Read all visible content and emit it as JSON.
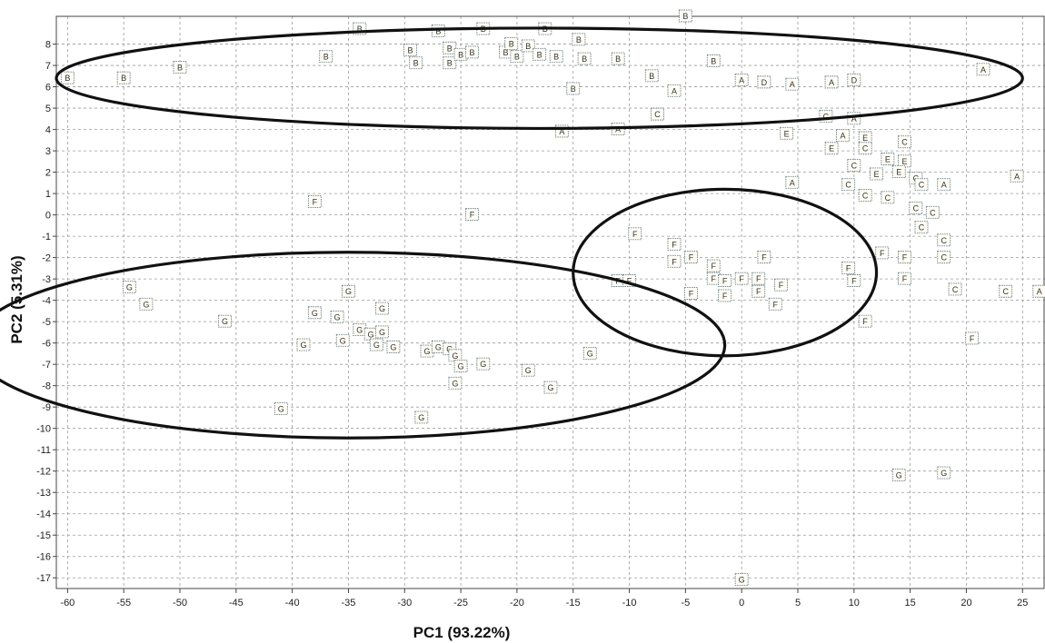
{
  "chart_data": {
    "type": "scatter",
    "title": "",
    "xlabel": "PC1 (93.22%)",
    "ylabel": "PC2 (5.31%)",
    "xlim": [
      -61,
      27
    ],
    "ylim": [
      -17.5,
      9.3
    ],
    "xticks": [
      -60,
      -55,
      -50,
      -45,
      -40,
      -35,
      -30,
      -25,
      -20,
      -15,
      -10,
      -5,
      0,
      5,
      10,
      15,
      20,
      25
    ],
    "yticks": [
      -17,
      -16,
      -15,
      -14,
      -13,
      -12,
      -11,
      -10,
      -9,
      -8,
      -7,
      -6,
      -5,
      -4,
      -3,
      -2,
      -1,
      0,
      1,
      2,
      3,
      4,
      5,
      6,
      7,
      8
    ],
    "grid": true,
    "legend": "none",
    "points": [
      {
        "label": "B",
        "x": -60,
        "y": 6.4
      },
      {
        "label": "B",
        "x": -55,
        "y": 6.4
      },
      {
        "label": "B",
        "x": -50,
        "y": 6.9
      },
      {
        "label": "B",
        "x": -37,
        "y": 7.4
      },
      {
        "label": "B",
        "x": -34,
        "y": 8.7
      },
      {
        "label": "B",
        "x": -29.5,
        "y": 7.7
      },
      {
        "label": "B",
        "x": -29,
        "y": 7.1
      },
      {
        "label": "B",
        "x": -27,
        "y": 8.6
      },
      {
        "label": "B",
        "x": -26,
        "y": 7.8
      },
      {
        "label": "B",
        "x": -26,
        "y": 7.1
      },
      {
        "label": "B",
        "x": -25,
        "y": 7.5
      },
      {
        "label": "B",
        "x": -24,
        "y": 7.6
      },
      {
        "label": "B",
        "x": -23,
        "y": 8.7
      },
      {
        "label": "B",
        "x": -21,
        "y": 7.6
      },
      {
        "label": "B",
        "x": -20.5,
        "y": 8.0
      },
      {
        "label": "B",
        "x": -20,
        "y": 7.4
      },
      {
        "label": "B",
        "x": -19,
        "y": 7.9
      },
      {
        "label": "B",
        "x": -18,
        "y": 7.5
      },
      {
        "label": "B",
        "x": -17.5,
        "y": 8.7
      },
      {
        "label": "B",
        "x": -16.5,
        "y": 7.4
      },
      {
        "label": "B",
        "x": -14.5,
        "y": 8.2
      },
      {
        "label": "B",
        "x": -14,
        "y": 7.3
      },
      {
        "label": "B",
        "x": -11,
        "y": 7.3
      },
      {
        "label": "B",
        "x": -15,
        "y": 5.9
      },
      {
        "label": "B",
        "x": -8,
        "y": 6.5
      },
      {
        "label": "B",
        "x": -5,
        "y": 9.3
      },
      {
        "label": "B",
        "x": -2.5,
        "y": 7.2
      },
      {
        "label": "A",
        "x": -6,
        "y": 5.8
      },
      {
        "label": "A",
        "x": -16,
        "y": 3.9
      },
      {
        "label": "A",
        "x": -11,
        "y": 4.0
      },
      {
        "label": "C",
        "x": -7.5,
        "y": 4.7
      },
      {
        "label": "A",
        "x": 0,
        "y": 6.3
      },
      {
        "label": "D",
        "x": 2,
        "y": 6.2
      },
      {
        "label": "A",
        "x": 4.5,
        "y": 6.1
      },
      {
        "label": "A",
        "x": 8,
        "y": 6.2
      },
      {
        "label": "D",
        "x": 10,
        "y": 6.3
      },
      {
        "label": "A",
        "x": 21.5,
        "y": 6.8
      },
      {
        "label": "C",
        "x": 7.5,
        "y": 4.6
      },
      {
        "label": "A",
        "x": 10,
        "y": 4.5
      },
      {
        "label": "E",
        "x": 4,
        "y": 3.8
      },
      {
        "label": "A",
        "x": 9,
        "y": 3.7
      },
      {
        "label": "E",
        "x": 11,
        "y": 3.6
      },
      {
        "label": "C",
        "x": 14.5,
        "y": 3.4
      },
      {
        "label": "E",
        "x": 8,
        "y": 3.1
      },
      {
        "label": "C",
        "x": 11,
        "y": 3.1
      },
      {
        "label": "E",
        "x": 13,
        "y": 2.6
      },
      {
        "label": "E",
        "x": 14.5,
        "y": 2.5
      },
      {
        "label": "C",
        "x": 10,
        "y": 2.3
      },
      {
        "label": "E",
        "x": 12,
        "y": 1.9
      },
      {
        "label": "E",
        "x": 14,
        "y": 2.0
      },
      {
        "label": "C",
        "x": 15.5,
        "y": 1.7
      },
      {
        "label": "A",
        "x": 4.5,
        "y": 1.5
      },
      {
        "label": "C",
        "x": 9.5,
        "y": 1.4
      },
      {
        "label": "C",
        "x": 16,
        "y": 1.4
      },
      {
        "label": "A",
        "x": 18,
        "y": 1.4
      },
      {
        "label": "A",
        "x": 24.5,
        "y": 1.8
      },
      {
        "label": "C",
        "x": 11,
        "y": 0.9
      },
      {
        "label": "C",
        "x": 13,
        "y": 0.8
      },
      {
        "label": "C",
        "x": 15.5,
        "y": 0.3
      },
      {
        "label": "C",
        "x": 17,
        "y": 0.1
      },
      {
        "label": "C",
        "x": 16,
        "y": -0.6
      },
      {
        "label": "C",
        "x": 18,
        "y": -1.2
      },
      {
        "label": "C",
        "x": 18,
        "y": -2.0
      },
      {
        "label": "F",
        "x": -38,
        "y": 0.6
      },
      {
        "label": "F",
        "x": -24,
        "y": 0
      },
      {
        "label": "F",
        "x": -9.5,
        "y": -0.9
      },
      {
        "label": "F",
        "x": -6,
        "y": -1.4
      },
      {
        "label": "F",
        "x": -6,
        "y": -2.2
      },
      {
        "label": "F",
        "x": -4.5,
        "y": -2.0
      },
      {
        "label": "F",
        "x": -2.5,
        "y": -2.4
      },
      {
        "label": "F",
        "x": -11,
        "y": -3.1
      },
      {
        "label": "F",
        "x": -10,
        "y": -3.1
      },
      {
        "label": "F",
        "x": -4.5,
        "y": -3.7
      },
      {
        "label": "F",
        "x": -2.5,
        "y": -3.0
      },
      {
        "label": "F",
        "x": -1.5,
        "y": -3.1
      },
      {
        "label": "F",
        "x": -1.5,
        "y": -3.8
      },
      {
        "label": "F",
        "x": 0,
        "y": -3.0
      },
      {
        "label": "F",
        "x": 1.5,
        "y": -3.0
      },
      {
        "label": "F",
        "x": 2,
        "y": -2.0
      },
      {
        "label": "F",
        "x": 1.5,
        "y": -3.6
      },
      {
        "label": "F",
        "x": 3.5,
        "y": -3.3
      },
      {
        "label": "F",
        "x": 3,
        "y": -4.2
      },
      {
        "label": "F",
        "x": 9.5,
        "y": -2.5
      },
      {
        "label": "F",
        "x": 10,
        "y": -3.1
      },
      {
        "label": "F",
        "x": 12.5,
        "y": -1.8
      },
      {
        "label": "F",
        "x": 14.5,
        "y": -2.0
      },
      {
        "label": "F",
        "x": 14.5,
        "y": -3.0
      },
      {
        "label": "F",
        "x": 11,
        "y": -5.0
      },
      {
        "label": "F",
        "x": 20.5,
        "y": -5.8
      },
      {
        "label": "C",
        "x": 19,
        "y": -3.5
      },
      {
        "label": "C",
        "x": 23.5,
        "y": -3.6
      },
      {
        "label": "A",
        "x": 26.5,
        "y": -3.6
      },
      {
        "label": "G",
        "x": -54.5,
        "y": -3.4
      },
      {
        "label": "G",
        "x": -53,
        "y": -4.2
      },
      {
        "label": "G",
        "x": -46,
        "y": -5.0
      },
      {
        "label": "G",
        "x": -41,
        "y": -9.1
      },
      {
        "label": "G",
        "x": -39,
        "y": -6.1
      },
      {
        "label": "G",
        "x": -38,
        "y": -4.6
      },
      {
        "label": "G",
        "x": -36,
        "y": -4.8
      },
      {
        "label": "G",
        "x": -35.5,
        "y": -5.9
      },
      {
        "label": "G",
        "x": -35,
        "y": -3.6
      },
      {
        "label": "G",
        "x": -34,
        "y": -5.4
      },
      {
        "label": "G",
        "x": -33,
        "y": -5.6
      },
      {
        "label": "G",
        "x": -32.5,
        "y": -6.1
      },
      {
        "label": "G",
        "x": -32,
        "y": -4.4
      },
      {
        "label": "G",
        "x": -32,
        "y": -5.5
      },
      {
        "label": "G",
        "x": -31,
        "y": -6.2
      },
      {
        "label": "G",
        "x": -28,
        "y": -6.4
      },
      {
        "label": "G",
        "x": -27,
        "y": -6.2
      },
      {
        "label": "G",
        "x": -26,
        "y": -6.3
      },
      {
        "label": "G",
        "x": -25.5,
        "y": -6.6
      },
      {
        "label": "G",
        "x": -25,
        "y": -7.1
      },
      {
        "label": "G",
        "x": -23,
        "y": -7.0
      },
      {
        "label": "G",
        "x": -25.5,
        "y": -7.9
      },
      {
        "label": "G",
        "x": -28.5,
        "y": -9.5
      },
      {
        "label": "G",
        "x": -19,
        "y": -7.3
      },
      {
        "label": "G",
        "x": -17,
        "y": -8.1
      },
      {
        "label": "G",
        "x": -13.5,
        "y": -6.5
      },
      {
        "label": "G",
        "x": 14,
        "y": -12.2
      },
      {
        "label": "G",
        "x": 18,
        "y": -12.1
      },
      {
        "label": "G",
        "x": 0,
        "y": -17.1
      }
    ],
    "ellipses": [
      {
        "cx": -18,
        "cy": 6.4,
        "rx": 43,
        "ry": 2.35
      },
      {
        "cx": -35,
        "cy": -6.1,
        "rx": 33.5,
        "ry": 4.35
      },
      {
        "cx": -1.5,
        "cy": -2.7,
        "rx": 13.5,
        "ry": 3.9
      }
    ]
  }
}
